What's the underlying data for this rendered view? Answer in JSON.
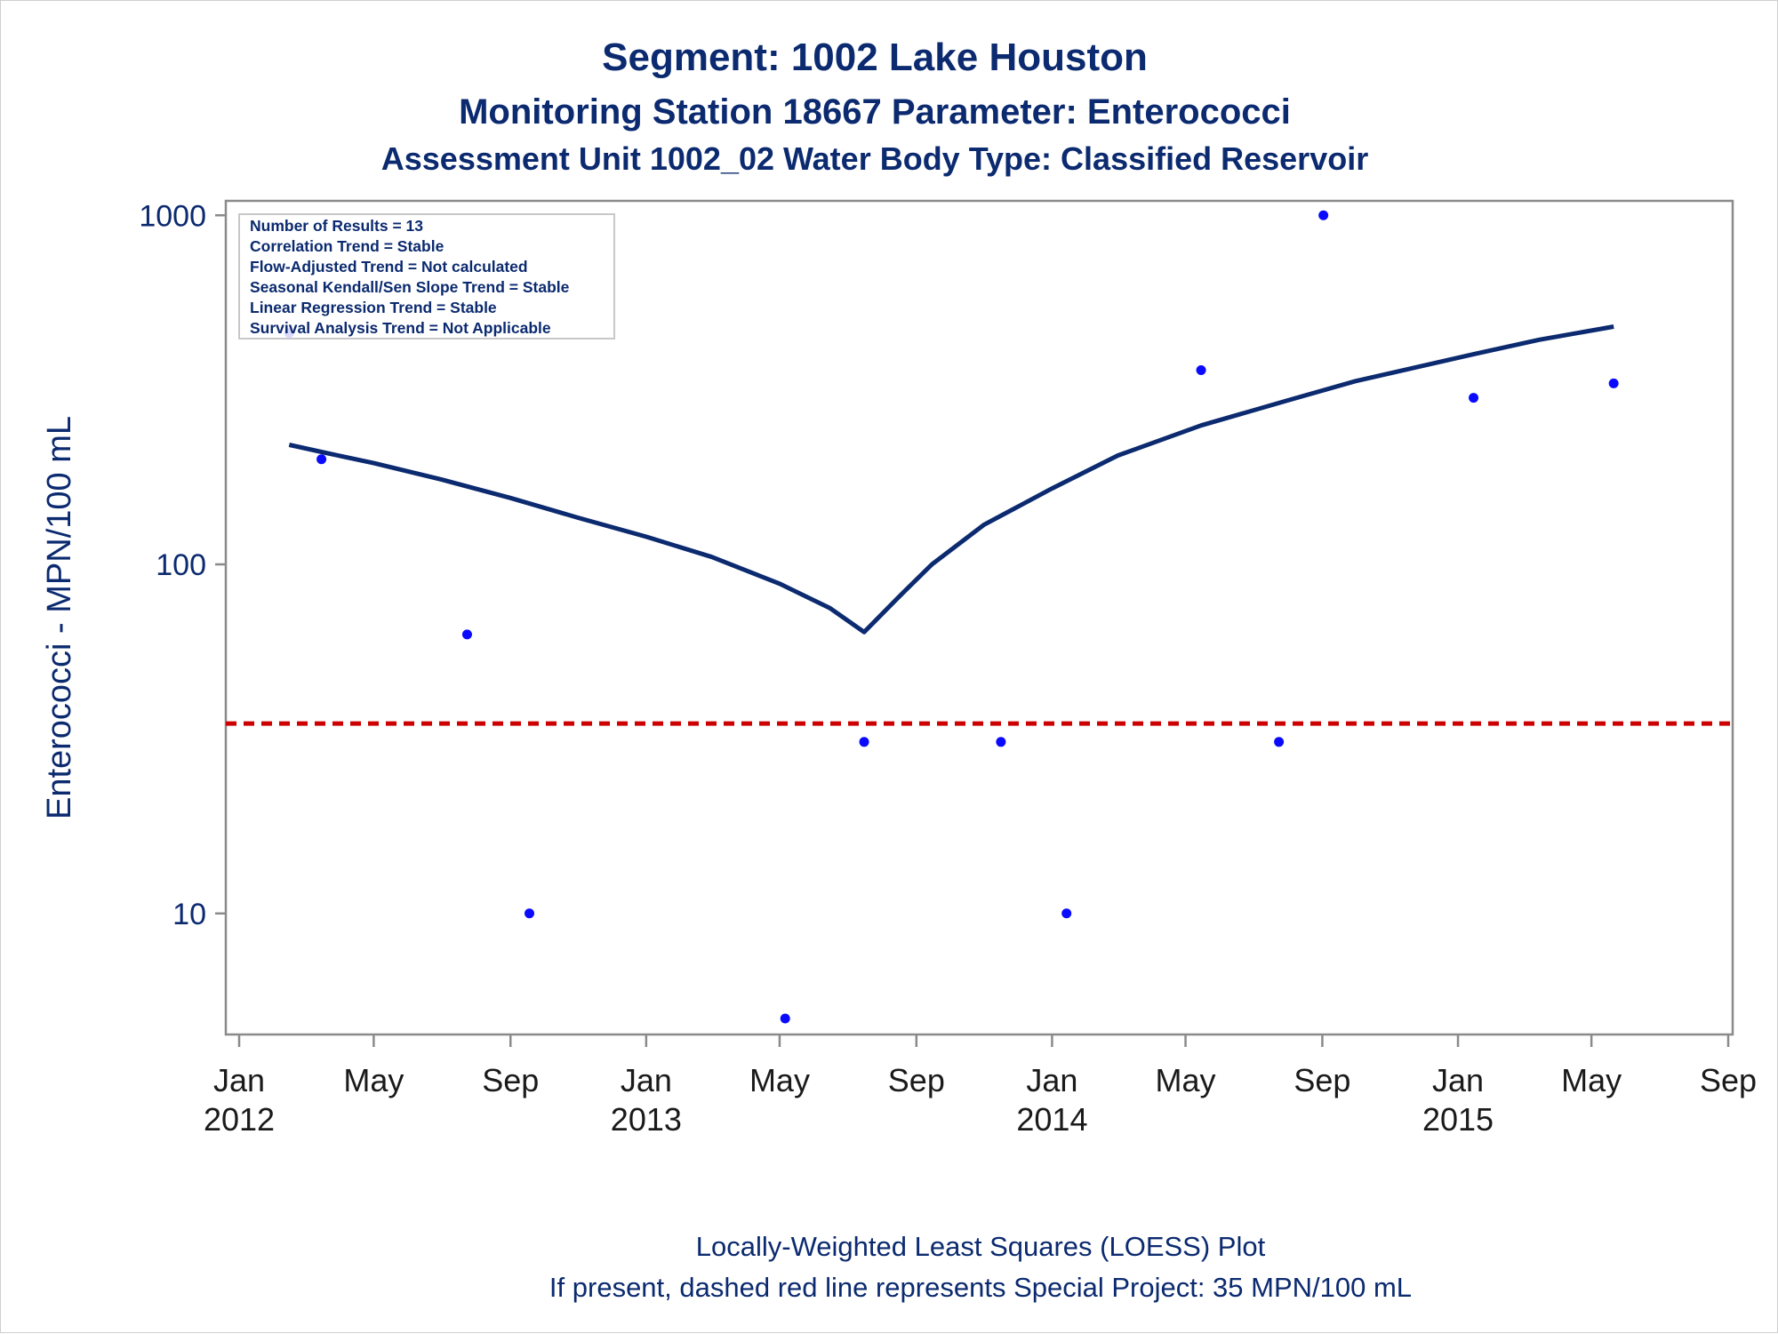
{
  "titles": {
    "line1": "Segment: 1002  Lake Houston",
    "line2": "Monitoring Station 18667 Parameter: Enterococci",
    "line3": "Assessment Unit 1002_02   Water Body Type: Classified Reservoir"
  },
  "inset": [
    "Number of Results = 13",
    "Correlation Trend = Stable",
    "Flow-Adjusted Trend = Not calculated",
    "Seasonal Kendall/Sen Slope Trend = Stable",
    "Linear Regression Trend = Stable",
    "Survival Analysis Trend = Not Applicable"
  ],
  "footnotes": {
    "line1": "Locally-Weighted Least Squares (LOESS) Plot",
    "line2": "If present, dashed red line represents Special Project: 35 MPN/100 mL"
  },
  "colors": {
    "points": "#0a0aff",
    "loess": "#0b2a6f",
    "reference": "#cc0000",
    "text": "#0b2a6f"
  },
  "chart_data": {
    "type": "scatter",
    "ylabel": "Enterococci - MPN/100 mL",
    "y_scale": "log10",
    "ylim": [
      4.5,
      1100
    ],
    "xlim": [
      "2011-12-20",
      "2015-09-05"
    ],
    "y_ticks": [
      {
        "value": 10,
        "label": "10"
      },
      {
        "value": 100,
        "label": "100"
      },
      {
        "value": 1000,
        "label": "1000"
      }
    ],
    "x_ticks": [
      {
        "date": "2012-01-01",
        "label1": "Jan",
        "label2": "2012"
      },
      {
        "date": "2012-05-01",
        "label1": "May",
        "label2": ""
      },
      {
        "date": "2012-09-01",
        "label1": "Sep",
        "label2": ""
      },
      {
        "date": "2013-01-01",
        "label1": "Jan",
        "label2": "2013"
      },
      {
        "date": "2013-05-01",
        "label1": "May",
        "label2": ""
      },
      {
        "date": "2013-09-01",
        "label1": "Sep",
        "label2": ""
      },
      {
        "date": "2014-01-01",
        "label1": "Jan",
        "label2": "2014"
      },
      {
        "date": "2014-05-01",
        "label1": "May",
        "label2": ""
      },
      {
        "date": "2014-09-01",
        "label1": "Sep",
        "label2": ""
      },
      {
        "date": "2015-01-01",
        "label1": "Jan",
        "label2": "2015"
      },
      {
        "date": "2015-05-01",
        "label1": "May",
        "label2": ""
      },
      {
        "date": "2015-09-01",
        "label1": "Sep",
        "label2": ""
      }
    ],
    "points": [
      {
        "date": "2012-02-15",
        "value": 460
      },
      {
        "date": "2012-03-15",
        "value": 200
      },
      {
        "date": "2012-07-24",
        "value": 63
      },
      {
        "date": "2012-09-18",
        "value": 10
      },
      {
        "date": "2013-05-06",
        "value": 5
      },
      {
        "date": "2013-07-16",
        "value": 31
      },
      {
        "date": "2013-11-16",
        "value": 31
      },
      {
        "date": "2014-01-14",
        "value": 10
      },
      {
        "date": "2014-05-15",
        "value": 360
      },
      {
        "date": "2014-07-24",
        "value": 31
      },
      {
        "date": "2014-09-02",
        "value": 1000
      },
      {
        "date": "2015-01-15",
        "value": 300
      },
      {
        "date": "2015-05-21",
        "value": 330
      }
    ],
    "loess": [
      {
        "date": "2012-02-15",
        "value": 220
      },
      {
        "date": "2012-03-15",
        "value": 210
      },
      {
        "date": "2012-05-01",
        "value": 195
      },
      {
        "date": "2012-07-01",
        "value": 175
      },
      {
        "date": "2012-09-01",
        "value": 155
      },
      {
        "date": "2012-11-01",
        "value": 136
      },
      {
        "date": "2013-01-01",
        "value": 120
      },
      {
        "date": "2013-03-01",
        "value": 105
      },
      {
        "date": "2013-05-01",
        "value": 88
      },
      {
        "date": "2013-06-15",
        "value": 75
      },
      {
        "date": "2013-07-16",
        "value": 64
      },
      {
        "date": "2013-08-15",
        "value": 80
      },
      {
        "date": "2013-09-15",
        "value": 100
      },
      {
        "date": "2013-11-01",
        "value": 130
      },
      {
        "date": "2014-01-01",
        "value": 165
      },
      {
        "date": "2014-03-01",
        "value": 205
      },
      {
        "date": "2014-05-15",
        "value": 250
      },
      {
        "date": "2014-08-01",
        "value": 295
      },
      {
        "date": "2014-10-01",
        "value": 335
      },
      {
        "date": "2015-01-15",
        "value": 400
      },
      {
        "date": "2015-03-15",
        "value": 440
      },
      {
        "date": "2015-05-21",
        "value": 480
      }
    ],
    "reference_line": {
      "value": 35
    }
  }
}
